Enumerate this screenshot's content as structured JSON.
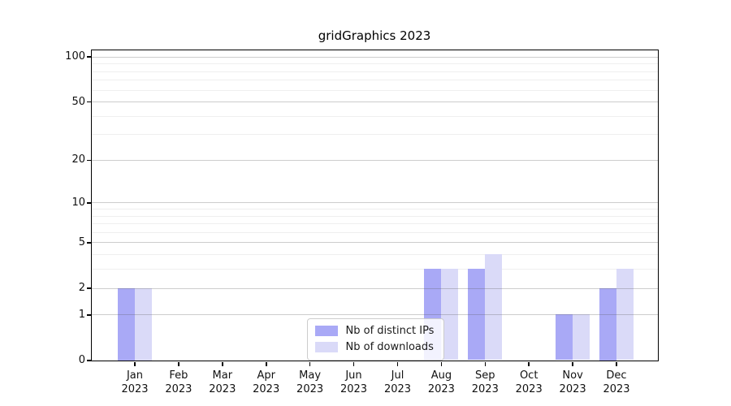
{
  "chart_data": {
    "type": "bar",
    "title": "gridGraphics 2023",
    "year_label": "2023",
    "categories": [
      "Jan",
      "Feb",
      "Mar",
      "Apr",
      "May",
      "Jun",
      "Jul",
      "Aug",
      "Sep",
      "Oct",
      "Nov",
      "Dec"
    ],
    "series": [
      {
        "name": "Nb of distinct IPs",
        "color": "#a9a9f6",
        "values": [
          2,
          0,
          0,
          0,
          0,
          0,
          0,
          3,
          3,
          0,
          1,
          2
        ]
      },
      {
        "name": "Nb of downloads",
        "color": "#dadaf8",
        "values": [
          2,
          0,
          0,
          0,
          0,
          0,
          0,
          3,
          4,
          0,
          1,
          3
        ]
      }
    ],
    "y_axis": {
      "scale": "log1p",
      "ticks": [
        0,
        1,
        2,
        5,
        10,
        20,
        50,
        100
      ],
      "minor_ticks": [
        3,
        4,
        6,
        7,
        8,
        9,
        30,
        40,
        60,
        70,
        80,
        90
      ],
      "range": [
        0,
        110
      ]
    },
    "x_axis": {
      "label_lines": 2
    },
    "grid": true,
    "legend_position": "inside-bottom-center"
  }
}
